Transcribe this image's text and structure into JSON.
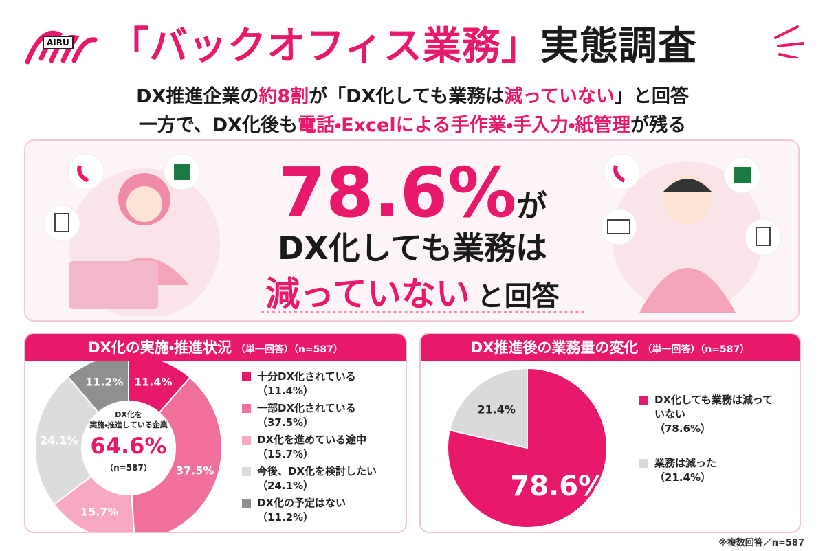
{
  "header": {
    "logo": "AIRU",
    "title": [
      {
        "text": "「バックオフィス業務」",
        "accent": true
      },
      {
        "text": "実態調査",
        "accent": false
      }
    ],
    "lead": [
      [
        {
          "text": "DX推進企業の",
          "accent": false
        },
        {
          "text": "約8割",
          "accent": true
        },
        {
          "text": "が「DX化しても業務は",
          "accent": false
        },
        {
          "text": "減っていない",
          "accent": true
        },
        {
          "text": "」と回答",
          "accent": false
        }
      ],
      [
        {
          "text": "一方で、DX化後も",
          "accent": false
        },
        {
          "text": "電話・Excelによる手作業・手入力・紙管理",
          "accent": true
        },
        {
          "text": "が残る",
          "accent": false
        }
      ]
    ]
  },
  "hero": {
    "figure": "78.6%",
    "figure_suffix": "が",
    "line2": "DX化しても業務は",
    "line3_accent": "減っていない",
    "line3_rest": "と回答"
  },
  "chart_data": [
    {
      "type": "donut",
      "title": "DX化の実施・推進状況",
      "subtitle": "（単一回答）（n=587）",
      "categories": [
        "十分DX化されている",
        "一部DX化されている",
        "DX化を進めている途中",
        "今後、DX化を検討したい",
        "DX化の予定はない"
      ],
      "values": [
        11.4,
        37.5,
        15.7,
        24.1,
        11.2
      ],
      "value_labels": [
        "11.4%",
        "37.5%",
        "15.7%",
        "24.1%",
        "11.2%"
      ],
      "legend_labels": [
        "（11.4%）",
        "（37.5%）",
        "（15.7%）",
        "（24.1%）",
        "（11.2%）"
      ],
      "colors": [
        "#e8196b",
        "#f0709a",
        "#f7a8c2",
        "#dcdcdc",
        "#8f8f8f"
      ],
      "label_colors": [
        "#ffffff",
        "#ffffff",
        "#ffffff",
        "#ffffff",
        "#ffffff"
      ],
      "center": {
        "title": [
          "DX化を",
          "実施・推進している企業"
        ],
        "value_label": "64.6%",
        "note": "（n=587）"
      }
    },
    {
      "type": "pie",
      "title": "DX推進後の業務量の変化",
      "subtitle": "（単一回答）（n=587）",
      "categories": [
        "DX化しても業務は減っていない",
        "業務は減った"
      ],
      "values": [
        78.6,
        21.4
      ],
      "value_labels": [
        "78.6%",
        "21.4%"
      ],
      "legend_labels": [
        "（78.6%）",
        "（21.4%）"
      ],
      "colors": [
        "#e8196b",
        "#d9d9d9"
      ],
      "label_colors": [
        "#ffffff",
        "#222222"
      ]
    }
  ],
  "footnote": "※複数回答／n=587"
}
